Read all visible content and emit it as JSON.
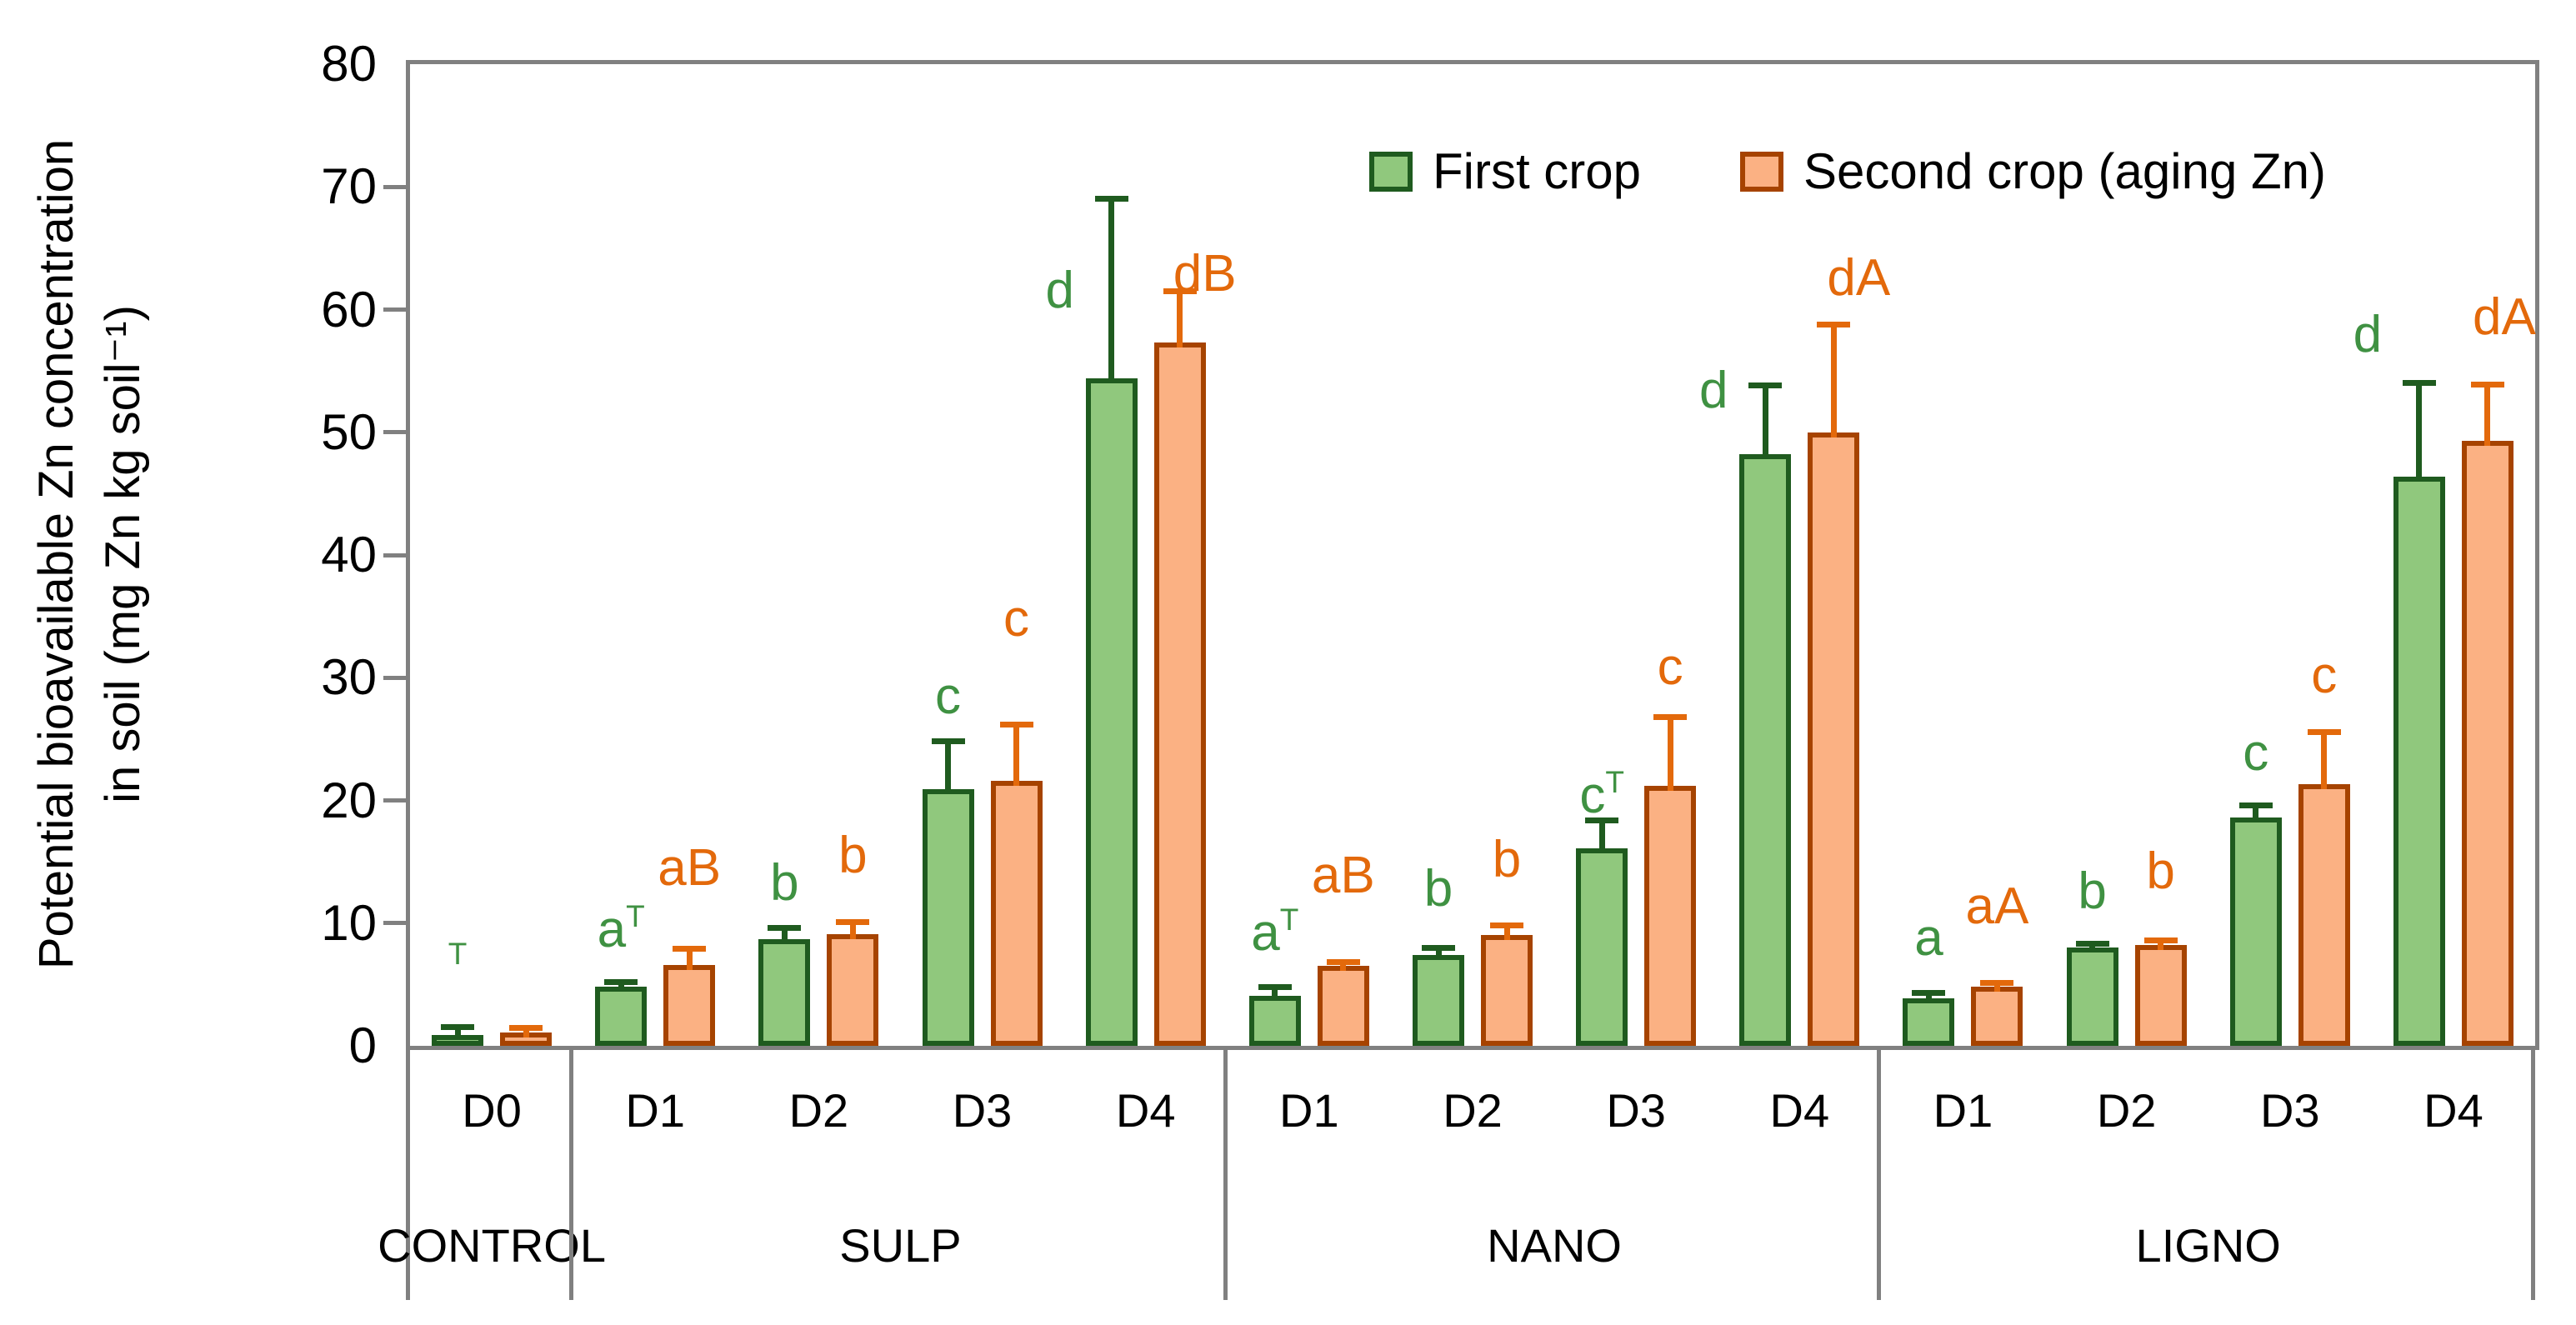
{
  "figure_type": "grouped bar chart with error bars",
  "y_axis": {
    "title_line1": "Potential bioavailable Zn concentration",
    "title_line2": "in soil  (mg Zn kg soil⁻¹)",
    "min": 0,
    "max": 80,
    "tick_step": 10,
    "tick_labels": [
      "0",
      "10",
      "20",
      "30",
      "40",
      "50",
      "60",
      "70",
      "80"
    ]
  },
  "legend": {
    "items": [
      {
        "label": "First crop",
        "fill": "#90C87D",
        "border": "#1F5B1F"
      },
      {
        "label": "Second crop (aging Zn)",
        "fill": "#FBB183",
        "border": "#A64300"
      }
    ]
  },
  "colors": {
    "first_crop_fill": "#90C87D",
    "first_crop_border": "#1F5B1F",
    "first_crop_error": "#1F5B1F",
    "first_crop_letter": "#3F9142",
    "second_crop_fill": "#FBB183",
    "second_crop_border": "#A64300",
    "second_crop_error": "#E3690B",
    "second_crop_letter": "#E3690B",
    "axis": "#808080",
    "text": "#000000"
  },
  "chart_data": {
    "type": "bar",
    "title": "",
    "xlabel": "",
    "ylabel": "Potential bioavailable Zn concentration in soil (mg Zn kg soil⁻¹)",
    "ylim": [
      0,
      80
    ],
    "grid": false,
    "legend_position": "top-right inside plot",
    "series_names": [
      "First crop",
      "Second crop (aging Zn)"
    ],
    "groups": [
      {
        "name": "CONTROL",
        "doses": [
          {
            "label": "D0",
            "first": {
              "value": 0.9,
              "error_top": 1.5,
              "letter": "",
              "sup": "T",
              "letter_y": 4.8
            },
            "second": {
              "value": 1.1,
              "error_top": 1.45,
              "letter": "",
              "sup": "",
              "letter_y": 0
            }
          }
        ]
      },
      {
        "name": "SULP",
        "doses": [
          {
            "label": "D1",
            "first": {
              "value": 4.8,
              "error_top": 5.2,
              "letter": "a",
              "sup": "T",
              "letter_y": 7.9
            },
            "second": {
              "value": 6.6,
              "error_top": 7.9,
              "letter": "aB",
              "sup": "",
              "letter_y": 12.9
            }
          },
          {
            "label": "D2",
            "first": {
              "value": 8.7,
              "error_top": 9.6,
              "letter": "b",
              "sup": "",
              "letter_y": 11.7
            },
            "second": {
              "value": 9.1,
              "error_top": 10.1,
              "letter": "b",
              "sup": "",
              "letter_y": 13.9
            }
          },
          {
            "label": "D3",
            "first": {
              "value": 20.9,
              "error_top": 24.8,
              "letter": "c",
              "sup": "",
              "letter_y": 26.9
            },
            "second": {
              "value": 21.6,
              "error_top": 26.2,
              "letter": "c",
              "sup": "",
              "letter_y": 33.2
            }
          },
          {
            "label": "D4",
            "first": {
              "value": 54.4,
              "error_top": 69.0,
              "letter": "d",
              "sup": "",
              "letter_y": 60.0,
              "letter_dx": -62
            },
            "second": {
              "value": 57.3,
              "error_top": 61.5,
              "letter": "dB",
              "sup": "",
              "letter_y": 61.3,
              "letter_dx": 30
            }
          }
        ]
      },
      {
        "name": "NANO",
        "doses": [
          {
            "label": "D1",
            "first": {
              "value": 4.1,
              "error_top": 4.8,
              "letter": "a",
              "sup": "T",
              "letter_y": 7.6
            },
            "second": {
              "value": 6.5,
              "error_top": 6.8,
              "letter": "aB",
              "sup": "",
              "letter_y": 12.3
            }
          },
          {
            "label": "D2",
            "first": {
              "value": 7.4,
              "error_top": 8.0,
              "letter": "b",
              "sup": "",
              "letter_y": 11.2
            },
            "second": {
              "value": 9.0,
              "error_top": 9.8,
              "letter": "b",
              "sup": "",
              "letter_y": 13.6
            }
          },
          {
            "label": "D3",
            "first": {
              "value": 16.1,
              "error_top": 18.4,
              "letter": "c",
              "sup": "T",
              "letter_y": 18.8
            },
            "second": {
              "value": 21.2,
              "error_top": 26.8,
              "letter": "c",
              "sup": "",
              "letter_y": 29.3
            }
          },
          {
            "label": "D4",
            "first": {
              "value": 48.2,
              "error_top": 53.8,
              "letter": "d",
              "sup": "",
              "letter_y": 51.8,
              "letter_dx": -62
            },
            "second": {
              "value": 50.0,
              "error_top": 58.8,
              "letter": "dA",
              "sup": "",
              "letter_y": 61.0,
              "letter_dx": 30
            }
          }
        ]
      },
      {
        "name": "LIGNO",
        "doses": [
          {
            "label": "D1",
            "first": {
              "value": 3.9,
              "error_top": 4.3,
              "letter": "a",
              "sup": "",
              "letter_y": 7.2
            },
            "second": {
              "value": 4.8,
              "error_top": 5.1,
              "letter": "aA",
              "sup": "",
              "letter_y": 9.8
            }
          },
          {
            "label": "D2",
            "first": {
              "value": 8.0,
              "error_top": 8.3,
              "letter": "b",
              "sup": "",
              "letter_y": 11.0
            },
            "second": {
              "value": 8.2,
              "error_top": 8.6,
              "letter": "b",
              "sup": "",
              "letter_y": 12.6
            }
          },
          {
            "label": "D3",
            "first": {
              "value": 18.6,
              "error_top": 19.6,
              "letter": "c",
              "sup": "",
              "letter_y": 22.3
            },
            "second": {
              "value": 21.3,
              "error_top": 25.6,
              "letter": "c",
              "sup": "",
              "letter_y": 28.6
            }
          },
          {
            "label": "D4",
            "first": {
              "value": 46.4,
              "error_top": 54.0,
              "letter": "d",
              "sup": "",
              "letter_y": 56.4,
              "letter_dx": -62
            },
            "second": {
              "value": 49.3,
              "error_top": 53.9,
              "letter": "dA",
              "sup": "",
              "letter_y": 57.8,
              "letter_dx": 20
            }
          }
        ]
      }
    ]
  }
}
